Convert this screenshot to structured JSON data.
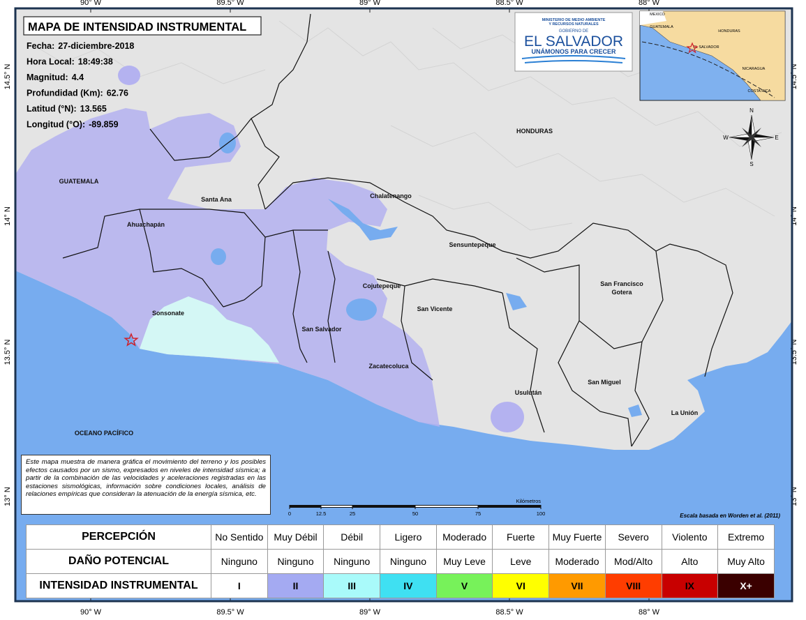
{
  "header": {
    "title": "MAPA DE INTENSIDAD INSTRUMENTAL",
    "info": [
      {
        "label": "Fecha:",
        "value": "27-diciembre-2018"
      },
      {
        "label": "Hora Local:",
        "value": "18:49:38"
      },
      {
        "label": "Magnitud:",
        "value": "4.4"
      },
      {
        "label": "Profundidad (Km):",
        "value": "62.76"
      },
      {
        "label": "Latitud (°N):",
        "value": "13.565"
      },
      {
        "label": "Longitud (°O):",
        "value": "-89.859"
      }
    ]
  },
  "logo": {
    "ministry": [
      "MINISTERIO DE MEDIO AMBIENTE",
      "Y RECURSOS NATURALES"
    ],
    "government": "GOBIERNO DE",
    "country": "EL SALVADOR",
    "slogan": "UNÁMONOS PARA CRECER"
  },
  "inset_map": {
    "labels": [
      "MEXICO",
      "GUATEMALA",
      "HONDURAS",
      "EL SALVADOR",
      "NICARAGUA",
      "COSTA RICA"
    ]
  },
  "compass": {
    "north": "N",
    "south": "S",
    "east": "E",
    "west": "W"
  },
  "graticule": {
    "longitudes": [
      "90° W",
      "89.5° W",
      "89° W",
      "88.5° W",
      "88° W"
    ],
    "latitudes": [
      "14.5° N",
      "14° N",
      "13.5° N",
      "13° N"
    ]
  },
  "places": [
    "GUATEMALA",
    "HONDURAS",
    "Santa Ana",
    "Chalatenango",
    "Ahuachapán",
    "Sensuntepeque",
    "Cojutepeque",
    "San Vicente",
    "San Salvador",
    "Sonsonate",
    "Zacatecoluca",
    "San Francisco",
    "Gotera",
    "San Miguel",
    "Usulután",
    "La Unión",
    "OCEANO PACÍFICO"
  ],
  "description": "Este mapa muestra de manera gráfica el movimiento del terreno y los posibles efectos causados por un sismo, expresados en niveles de intensidad sísmica; a partir de la combinación de las velocidades y aceleraciones registradas en las estaciones sismológicas, información sobre condiciones locales, análisis de relaciones empíricas que consideran la atenuación de la energía sísmica, etc.",
  "scale_bar": {
    "unit": "Kilómetros",
    "ticks": [
      0,
      12.5,
      25,
      50,
      75,
      100
    ]
  },
  "credit": "Escala basada en Worden et al. (2011)",
  "legend": {
    "rows": [
      {
        "header": "PERCEPCIÓN",
        "cells": [
          "No Sentido",
          "Muy Débil",
          "Débil",
          "Ligero",
          "Moderado",
          "Fuerte",
          "Muy Fuerte",
          "Severo",
          "Violento",
          "Extremo"
        ]
      },
      {
        "header": "DAÑO POTENCIAL",
        "cells": [
          "Ninguno",
          "Ninguno",
          "Ninguno",
          "Ninguno",
          "Muy Leve",
          "Leve",
          "Moderado",
          "Mod/Alto",
          "Alto",
          "Muy Alto"
        ]
      },
      {
        "header": "INTENSIDAD INSTRUMENTAL",
        "cells": [
          "I",
          "II",
          "III",
          "IV",
          "V",
          "VI",
          "VII",
          "VIII",
          "IX",
          "X+"
        ]
      }
    ],
    "intensity_colors": [
      "#ffffff",
      "#a4aaf2",
      "#a9fafa",
      "#3fe0f2",
      "#77f25a",
      "#ffff00",
      "#ff9a00",
      "#ff3d00",
      "#c80000",
      "#3a0000"
    ]
  }
}
